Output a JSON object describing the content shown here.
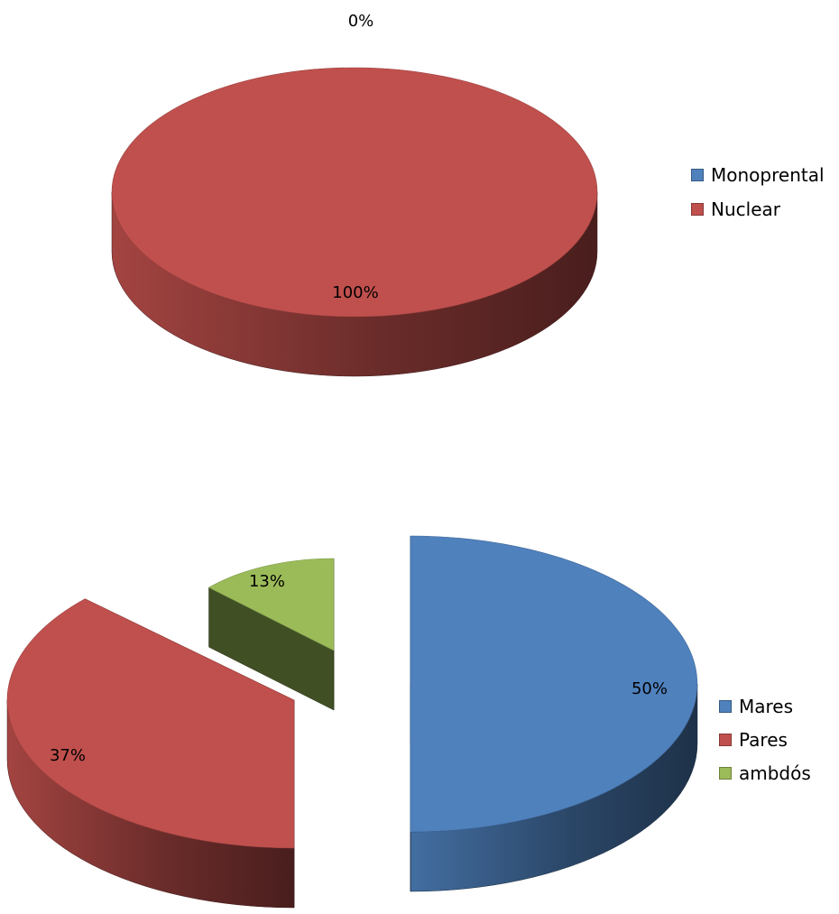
{
  "chart_data": [
    {
      "type": "pie",
      "categories": [
        "Monoprental",
        "Nuclear"
      ],
      "values": [
        0,
        100
      ],
      "data_labels": [
        "0%",
        "100%"
      ],
      "colors": [
        "#4F81BD",
        "#C0504D"
      ],
      "legend_position": "right",
      "style": "3d"
    },
    {
      "type": "pie",
      "categories": [
        "Mares",
        "Pares",
        "ambdós"
      ],
      "values": [
        50,
        37,
        13
      ],
      "data_labels": [
        "50%",
        "37%",
        "13%"
      ],
      "colors": [
        "#4F81BD",
        "#C0504D",
        "#9BBB59"
      ],
      "legend_position": "right",
      "style": "3d exploded"
    }
  ]
}
